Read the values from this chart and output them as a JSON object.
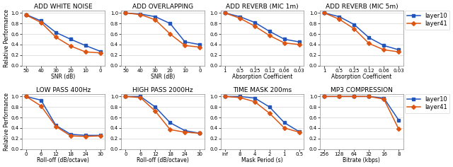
{
  "plots": [
    {
      "title": "ADD WHITE NOISE",
      "xlabel": "SNR (dB)",
      "xtick_labels": [
        "50",
        "40",
        "30",
        "20",
        "10",
        "0"
      ],
      "y_layer10": [
        0.97,
        0.85,
        0.63,
        0.5,
        0.38,
        0.27
      ],
      "y_layer41": [
        0.96,
        0.82,
        0.54,
        0.37,
        0.26,
        0.24
      ],
      "row": 0,
      "col": 0
    },
    {
      "title": "ADD OVERLAPPING",
      "xlabel": "SNR (dB)",
      "xtick_labels": [
        "50",
        "40",
        "30",
        "20",
        "10",
        "0"
      ],
      "y_layer10": [
        1.0,
        0.98,
        0.93,
        0.8,
        0.45,
        0.4
      ],
      "y_layer41": [
        1.0,
        0.97,
        0.87,
        0.6,
        0.38,
        0.35
      ],
      "row": 0,
      "col": 1
    },
    {
      "title": "ADD REVERB (MIC 1m)",
      "xlabel": "Absorption Coefficient",
      "xtick_labels": [
        "1",
        "0.5",
        "0.25",
        "0.12",
        "0.06",
        "0.03"
      ],
      "y_layer10": [
        1.0,
        0.93,
        0.82,
        0.65,
        0.5,
        0.45
      ],
      "y_layer41": [
        1.0,
        0.9,
        0.75,
        0.57,
        0.43,
        0.4
      ],
      "row": 0,
      "col": 2
    },
    {
      "title": "ADD REVERB (MIC 5m)",
      "xlabel": "Absorption Coefficient",
      "xtick_labels": [
        "1",
        "0.5",
        "0.25",
        "0.12",
        "0.06",
        "0.03"
      ],
      "y_layer10": [
        1.0,
        0.93,
        0.78,
        0.53,
        0.38,
        0.3
      ],
      "y_layer41": [
        1.0,
        0.88,
        0.7,
        0.42,
        0.3,
        0.26
      ],
      "row": 0,
      "col": 3,
      "legend": true
    },
    {
      "title": "LOW PASS 400Hz",
      "xlabel": "Roll-off (dB/octave)",
      "xtick_labels": [
        "0",
        "6",
        "12",
        "18",
        "24",
        "30"
      ],
      "y_layer10": [
        1.0,
        0.93,
        0.45,
        0.28,
        0.26,
        0.26
      ],
      "y_layer41": [
        1.0,
        0.82,
        0.43,
        0.25,
        0.24,
        0.25
      ],
      "row": 1,
      "col": 0
    },
    {
      "title": "HIGH PASS 2000Hz",
      "xlabel": "Roll-off (dB/octave)",
      "xtick_labels": [
        "0",
        "6",
        "12",
        "18",
        "24",
        "30"
      ],
      "y_layer10": [
        1.0,
        1.0,
        0.8,
        0.5,
        0.35,
        0.3
      ],
      "y_layer41": [
        1.0,
        0.98,
        0.72,
        0.37,
        0.32,
        0.3
      ],
      "row": 1,
      "col": 1
    },
    {
      "title": "TIME MASK 200ms",
      "xlabel": "Mask Period (s)",
      "xtick_labels": [
        "inf",
        "8",
        "4",
        "2",
        "1",
        "0.5"
      ],
      "y_layer10": [
        1.0,
        1.0,
        0.97,
        0.8,
        0.5,
        0.33
      ],
      "y_layer41": [
        1.0,
        0.98,
        0.9,
        0.68,
        0.4,
        0.32
      ],
      "row": 1,
      "col": 2
    },
    {
      "title": "MP3 COMPRESSION",
      "xlabel": "Bitrate (kbps)",
      "xtick_labels": [
        "256",
        "128",
        "64",
        "32",
        "16",
        "8"
      ],
      "y_layer10": [
        1.0,
        1.0,
        1.0,
        1.0,
        0.97,
        0.55
      ],
      "y_layer41": [
        1.0,
        1.0,
        1.0,
        1.0,
        0.95,
        0.38
      ],
      "row": 1,
      "col": 3,
      "legend": true
    }
  ],
  "color_layer10": "#2255bb",
  "color_layer41": "#dd5511",
  "marker_layer10": "s",
  "marker_layer41": "D",
  "yticks": [
    0,
    0.2,
    0.4,
    0.6,
    0.8,
    1.0
  ],
  "ylabel": "Relative Performance",
  "figsize": [
    6.4,
    2.36
  ],
  "dpi": 100,
  "title_fontsize": 6.5,
  "label_fontsize": 5.5,
  "tick_fontsize": 5.0,
  "legend_fontsize": 6.0,
  "linewidth": 1.1,
  "markersize": 3.0
}
